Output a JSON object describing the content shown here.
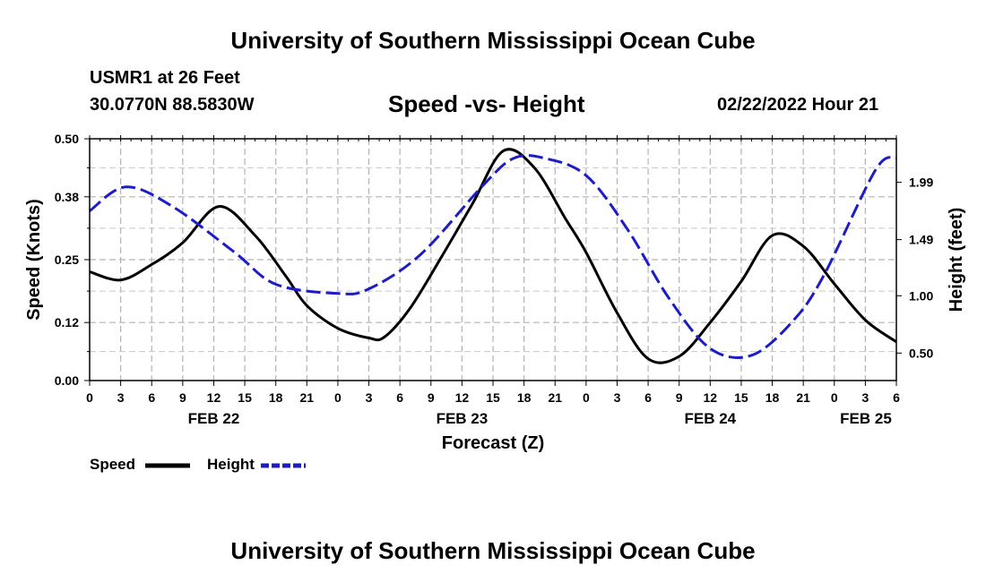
{
  "header": {
    "title": "University of Southern Mississippi Ocean Cube",
    "station": "USMR1 at 26 Feet",
    "coords": "30.0770N  88.5830W",
    "subtitle": "Speed -vs- Height",
    "datetime": "02/22/2022 Hour 21",
    "footer_title": "University of Southern Mississippi Ocean Cube"
  },
  "chart_data": {
    "type": "line",
    "title": "Speed -vs- Height",
    "xlabel": "Forecast (Z)",
    "ylabel_left": "Speed (Knots)",
    "ylabel_right": "Height (feet)",
    "x_hours_range": [
      0,
      78
    ],
    "x_tick_step_hours": 3,
    "x_tick_labels": [
      "0",
      "3",
      "6",
      "9",
      "12",
      "15",
      "18",
      "21",
      "0",
      "3",
      "6",
      "9",
      "12",
      "15",
      "18",
      "21",
      "0",
      "3",
      "6",
      "9",
      "12",
      "15",
      "18",
      "21",
      "0",
      "3",
      "6"
    ],
    "date_labels": [
      {
        "label": "FEB 22",
        "hour": 12
      },
      {
        "label": "FEB 23",
        "hour": 36
      },
      {
        "label": "FEB 24",
        "hour": 60
      },
      {
        "label": "FEB 25",
        "hour": 78
      }
    ],
    "ylim_left": [
      0,
      0.5
    ],
    "yticks_left": [
      0.0,
      0.12,
      0.25,
      0.38,
      0.5
    ],
    "ytick_labels_left": [
      "0.00",
      "0.12",
      "0.25",
      "0.38",
      "0.50"
    ],
    "ylim_right": [
      0.26,
      2.37
    ],
    "yticks_right": [
      0.5,
      1.0,
      1.49,
      1.99
    ],
    "ytick_labels_right": [
      "0.50",
      "1.00",
      "1.49",
      "1.99"
    ],
    "grid": true,
    "legend_position": "bottom-left",
    "series": [
      {
        "name": "Speed",
        "axis": "left",
        "color": "#000000",
        "style": "solid",
        "x": [
          0,
          3,
          6,
          9,
          12.5,
          16,
          19,
          21,
          24,
          27,
          28.5,
          31,
          34,
          37,
          40,
          43,
          46,
          48,
          51,
          54,
          57,
          60,
          63,
          66,
          69,
          72,
          75,
          78
        ],
        "y": [
          0.225,
          0.208,
          0.24,
          0.285,
          0.36,
          0.3,
          0.215,
          0.155,
          0.108,
          0.088,
          0.09,
          0.15,
          0.255,
          0.365,
          0.475,
          0.44,
          0.335,
          0.265,
          0.14,
          0.045,
          0.05,
          0.12,
          0.205,
          0.3,
          0.278,
          0.2,
          0.125,
          0.08
        ]
      },
      {
        "name": "Height",
        "axis": "right",
        "color": "#1c1cc8",
        "style": "dashed",
        "x": [
          0,
          3.5,
          8,
          14,
          18,
          24,
          27,
          32,
          38,
          41,
          44,
          48,
          52,
          56,
          60,
          64,
          68,
          71,
          76,
          78
        ],
        "y": [
          1.74,
          1.95,
          1.78,
          1.38,
          1.1,
          1.02,
          1.06,
          1.36,
          1.96,
          2.2,
          2.2,
          2.05,
          1.58,
          0.98,
          0.54,
          0.48,
          0.78,
          1.18,
          2.1,
          2.2
        ]
      }
    ],
    "legend": [
      {
        "label": "Speed",
        "color": "#000000",
        "style": "solid"
      },
      {
        "label": "Height",
        "color": "#1c1cc8",
        "style": "dashed"
      }
    ]
  }
}
